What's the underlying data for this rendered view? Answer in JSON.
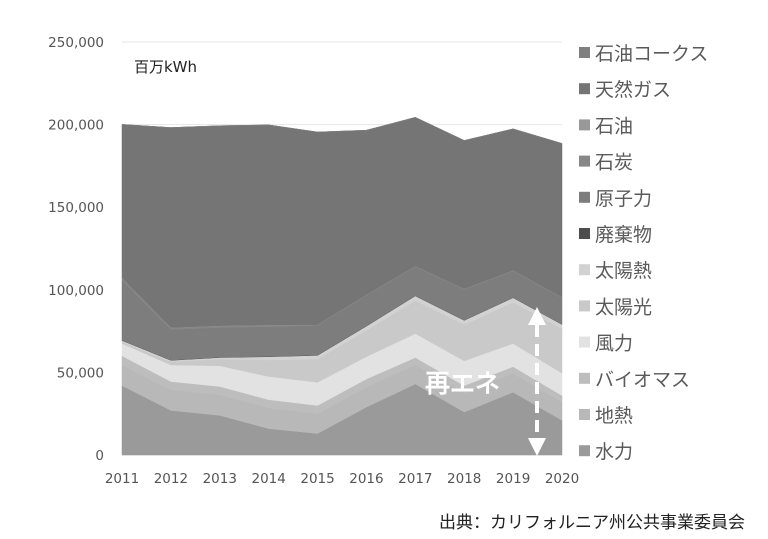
{
  "chart_data": {
    "type": "area",
    "stacked": true,
    "unit_label": "百万kWh",
    "x": [
      2011,
      2012,
      2013,
      2014,
      2015,
      2016,
      2017,
      2018,
      2019,
      2020
    ],
    "ylim": [
      0,
      250000
    ],
    "yticks": [
      "0",
      "50,000",
      "100,000",
      "150,000",
      "200,000",
      "250,000"
    ],
    "series": [
      {
        "name": "水力",
        "color": "#9a9a9a",
        "values": [
          42000,
          27000,
          24000,
          16000,
          13000,
          29000,
          43000,
          26000,
          38000,
          21000
        ]
      },
      {
        "name": "地熱",
        "color": "#b8b8b8",
        "values": [
          12500,
          12500,
          12500,
          12500,
          12000,
          12000,
          11500,
          11500,
          11500,
          11000
        ]
      },
      {
        "name": "バイオマス",
        "color": "#bdbdbd",
        "values": [
          5500,
          5000,
          5000,
          5000,
          5000,
          5000,
          4500,
          4500,
          4000,
          4000
        ]
      },
      {
        "name": "風力",
        "color": "#e2e2e2",
        "values": [
          7500,
          10000,
          12500,
          14000,
          14000,
          13500,
          14500,
          15000,
          14000,
          13500
        ]
      },
      {
        "name": "太陽光",
        "color": "#c9c9c9",
        "values": [
          1000,
          2000,
          4000,
          10000,
          14000,
          16000,
          20000,
          22000,
          25000,
          27000
        ]
      },
      {
        "name": "太陽熱",
        "color": "#d2d2d2",
        "values": [
          800,
          800,
          1000,
          2000,
          2300,
          2500,
          2800,
          2500,
          2700,
          2500
        ]
      },
      {
        "name": "廃棄物",
        "color": "#4d4d4d",
        "values": [
          200,
          200,
          200,
          200,
          200,
          200,
          200,
          200,
          200,
          200
        ]
      },
      {
        "name": "原子力",
        "color": "#7d7d7d",
        "values": [
          36500,
          18500,
          18000,
          18000,
          18000,
          18500,
          17500,
          18500,
          16000,
          16000
        ]
      },
      {
        "name": "石炭",
        "color": "#878787",
        "values": [
          1200,
          1100,
          1000,
          1000,
          300,
          300,
          300,
          300,
          300,
          300
        ]
      },
      {
        "name": "石油",
        "color": "#989898",
        "values": [
          100,
          100,
          100,
          100,
          100,
          100,
          100,
          100,
          100,
          100
        ]
      },
      {
        "name": "天然ガス",
        "color": "#757575",
        "values": [
          92800,
          121000,
          121000,
          121000,
          116600,
          99500,
          90000,
          89800,
          85600,
          93000
        ]
      },
      {
        "name": "石油コークス",
        "color": "#7f7f7f",
        "values": [
          0,
          0,
          0,
          0,
          0,
          0,
          0,
          0,
          0,
          0
        ]
      }
    ],
    "annotation": "再エネ",
    "source": "出典：カリフォルニア州公共事業委員会"
  }
}
